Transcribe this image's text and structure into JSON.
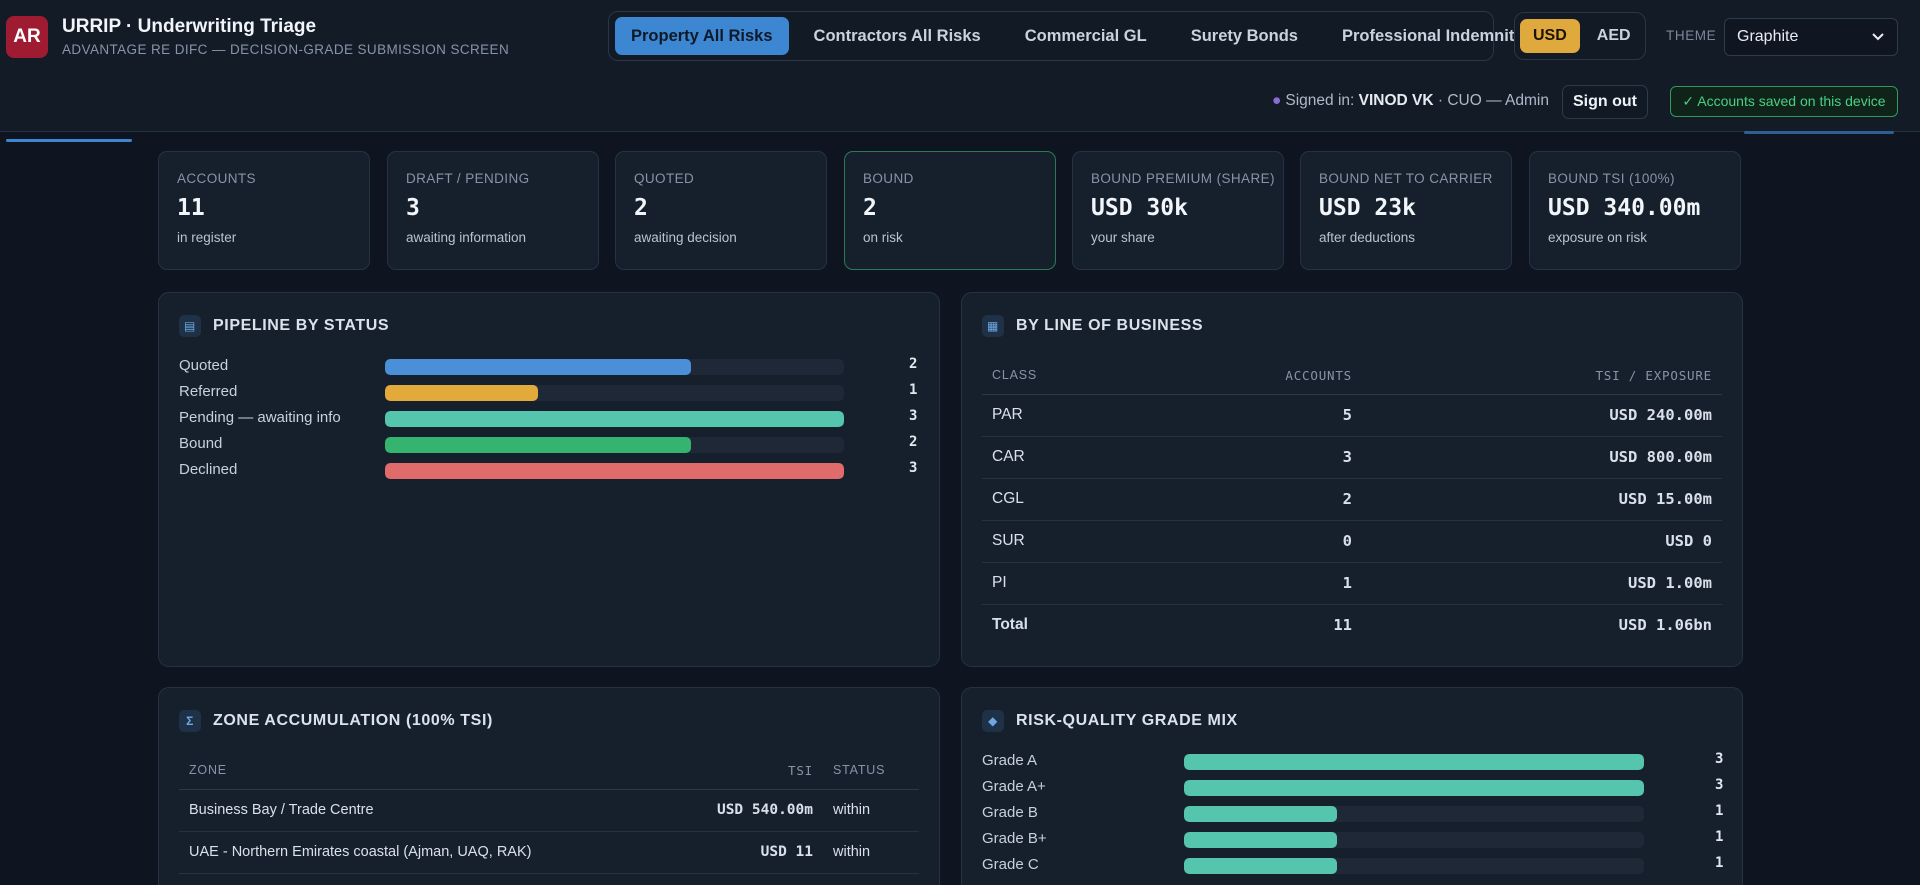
{
  "header": {
    "logo": "AR",
    "title": "URRIP · Underwriting Triage",
    "subtitle": "ADVANTAGE RE DIFC — DECISION-GRADE SUBMISSION SCREEN",
    "lob_tabs": [
      {
        "label": "Property All Risks",
        "active": true
      },
      {
        "label": "Contractors All Risks",
        "active": false
      },
      {
        "label": "Commercial GL",
        "active": false
      },
      {
        "label": "Surety Bonds",
        "active": false
      },
      {
        "label": "Professional Indemnity",
        "active": false
      }
    ],
    "currency": {
      "options": [
        "USD",
        "AED"
      ],
      "selected": "USD"
    },
    "theme_label": "THEME",
    "theme_value": "Graphite",
    "signed_prefix": "Signed in:",
    "signed_user": "VINOD VK",
    "signed_role": "· CUO — Admin",
    "sign_out": "Sign out",
    "saved_status": "✓ Accounts saved on this device"
  },
  "kpis": [
    {
      "label": "ACCOUNTS",
      "value": "11",
      "note": "in register"
    },
    {
      "label": "DRAFT / PENDING",
      "value": "3",
      "note": "awaiting information"
    },
    {
      "label": "QUOTED",
      "value": "2",
      "note": "awaiting decision"
    },
    {
      "label": "BOUND",
      "value": "2",
      "note": "on risk"
    },
    {
      "label": "BOUND PREMIUM (SHARE)",
      "value": "USD 30k",
      "note": "your share"
    },
    {
      "label": "BOUND NET TO CARRIER",
      "value": "USD 23k",
      "note": "after deductions"
    },
    {
      "label": "BOUND TSI (100%)",
      "value": "USD 340.00m",
      "note": "exposure on risk"
    }
  ],
  "pipeline": {
    "title": "PIPELINE BY STATUS",
    "max": 3,
    "rows": [
      {
        "label": "Quoted",
        "count": "2",
        "value": 2,
        "color": "#4a90d9"
      },
      {
        "label": "Referred",
        "count": "1",
        "value": 1,
        "color": "#e2a93b"
      },
      {
        "label": "Pending — awaiting info",
        "count": "3",
        "value": 3,
        "color": "#55c5ae"
      },
      {
        "label": "Bound",
        "count": "2",
        "value": 2,
        "color": "#34b46e"
      },
      {
        "label": "Declined",
        "count": "3",
        "value": 3,
        "color": "#e06b6b"
      }
    ]
  },
  "lob": {
    "title": "BY LINE OF BUSINESS",
    "columns": [
      "CLASS",
      "ACCOUNTS",
      "TSI / EXPOSURE"
    ],
    "rows": [
      {
        "cls": "PAR",
        "accounts": "5",
        "tsi": "USD 240.00m"
      },
      {
        "cls": "CAR",
        "accounts": "3",
        "tsi": "USD 800.00m"
      },
      {
        "cls": "CGL",
        "accounts": "2",
        "tsi": "USD 15.00m"
      },
      {
        "cls": "SUR",
        "accounts": "0",
        "tsi": "USD 0"
      },
      {
        "cls": "PI",
        "accounts": "1",
        "tsi": "USD 1.00m"
      }
    ],
    "total": {
      "cls": "Total",
      "accounts": "11",
      "tsi": "USD 1.06bn"
    }
  },
  "zones": {
    "title": "ZONE ACCUMULATION (100% TSI)",
    "columns": [
      "ZONE",
      "TSI",
      "STATUS"
    ],
    "rows": [
      {
        "zone": "Business Bay / Trade Centre",
        "tsi": "USD 540.00m",
        "status": "within"
      },
      {
        "zone": "UAE - Northern Emirates coastal (Ajman, UAQ, RAK)",
        "tsi": "USD 11",
        "status": "within"
      }
    ]
  },
  "grades": {
    "title": "RISK-QUALITY GRADE MIX",
    "max": 3,
    "rows": [
      {
        "label": "Grade A",
        "count": "3",
        "value": 3
      },
      {
        "label": "Grade A+",
        "count": "3",
        "value": 3
      },
      {
        "label": "Grade B",
        "count": "1",
        "value": 1
      },
      {
        "label": "Grade B+",
        "count": "1",
        "value": 1
      },
      {
        "label": "Grade C",
        "count": "1",
        "value": 1
      }
    ]
  }
}
